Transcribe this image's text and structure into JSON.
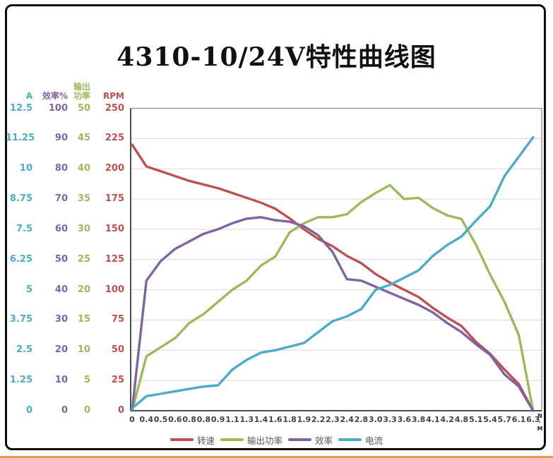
{
  "window": {
    "title_text": "4310-10/24V特性曲线图"
  },
  "y_axes": [
    {
      "label": "A",
      "color": "#4BACC6",
      "ticks": [
        "12.5",
        "11.25",
        "10",
        "8.75",
        "7.5",
        "6.25",
        "5",
        "3.75",
        "2.5",
        "1.25",
        "0"
      ]
    },
    {
      "label": "效率%",
      "color": "#8064A2",
      "ticks": [
        "100",
        "90",
        "80",
        "70",
        "60",
        "50",
        "40",
        "30",
        "20",
        "10",
        "0"
      ]
    },
    {
      "label": "输出功率",
      "label_lines": [
        "输出",
        "功率"
      ],
      "color": "#9BBB59",
      "ticks": [
        "50",
        "45",
        "40",
        "35",
        "30",
        "25",
        "20",
        "15",
        "10",
        "5",
        "0"
      ]
    },
    {
      "label": "RPM",
      "color": "#C0504D",
      "ticks": [
        "250",
        "225",
        "200",
        "175",
        "150",
        "125",
        "100",
        "75",
        "50",
        "25",
        "0"
      ]
    }
  ],
  "x_axis": {
    "unit": "N·M",
    "labels": [
      "0",
      "0.4",
      "0.5",
      "0.6",
      "0.8",
      "0.8",
      "0.9",
      "1.1",
      "1.3",
      "1.4",
      "1.6",
      "1.8",
      "1.9",
      "2.2",
      "2.3",
      "2.4",
      "2.8",
      "3.0",
      "3.3",
      "3.6",
      "3.8",
      "4.1",
      "4.2",
      "4.8",
      "5.1",
      "5.4",
      "5.7",
      "6.1",
      "6.3"
    ]
  },
  "legend": [
    {
      "label": "转速",
      "color": "#C0504D"
    },
    {
      "label": "输出功率",
      "color": "#9BBB59"
    },
    {
      "label": "效率",
      "color": "#8064A2"
    },
    {
      "label": "电流",
      "color": "#4BACC6"
    }
  ],
  "chart_data": {
    "type": "line",
    "title": "4310-10/24V特性曲线图",
    "grid": "horizontal",
    "legend_position": "bottom",
    "x_unit": "N·M",
    "categories": [
      "0",
      "0.4",
      "0.5",
      "0.6",
      "0.8",
      "0.8",
      "0.9",
      "1.1",
      "1.3",
      "1.4",
      "1.6",
      "1.8",
      "1.9",
      "2.2",
      "2.3",
      "2.4",
      "2.8",
      "3.0",
      "3.3",
      "3.6",
      "3.8",
      "4.1",
      "4.2",
      "4.8",
      "5.1",
      "5.4",
      "5.7",
      "6.1",
      "6.3"
    ],
    "series": [
      {
        "name": "转速",
        "unit": "RPM",
        "color": "#C0504D",
        "axis_max": 250,
        "axis_min": 0,
        "values": [
          220,
          202,
          198,
          194,
          190,
          187,
          184,
          180,
          176,
          172,
          167,
          159,
          150,
          142,
          136,
          128,
          122,
          113,
          106,
          100,
          94,
          85,
          77,
          70,
          57,
          47,
          34,
          22,
          0
        ]
      },
      {
        "name": "输出功率",
        "unit": "W",
        "color": "#9BBB59",
        "axis_max": 50,
        "axis_min": 0,
        "values": [
          0,
          9,
          10.5,
          12,
          14.5,
          16,
          18,
          20,
          21.5,
          24,
          25.5,
          29.5,
          31,
          32,
          32,
          32.5,
          34.5,
          36,
          37.3,
          35,
          35.2,
          33.5,
          32.3,
          31.7,
          27.5,
          22.5,
          18,
          12.5,
          0
        ]
      },
      {
        "name": "效率",
        "unit": "%",
        "color": "#8064A2",
        "axis_max": 100,
        "axis_min": 0,
        "values": [
          0,
          43,
          49.5,
          53.5,
          56,
          58.5,
          60,
          62,
          63.5,
          64,
          63,
          62.5,
          61,
          58,
          52.5,
          43.5,
          43,
          41,
          39,
          37,
          35,
          32.5,
          29,
          26,
          22,
          18.5,
          12,
          8,
          0
        ]
      },
      {
        "name": "电流",
        "unit": "A",
        "color": "#4BACC6",
        "axis_max": 12.5,
        "axis_min": 0,
        "values": [
          0.1,
          0.6,
          0.7,
          0.8,
          0.9,
          1.0,
          1.05,
          1.7,
          2.1,
          2.4,
          2.5,
          2.65,
          2.8,
          3.25,
          3.7,
          3.9,
          4.2,
          5.0,
          5.2,
          5.5,
          5.8,
          6.4,
          6.85,
          7.2,
          7.85,
          8.45,
          9.7,
          10.5,
          11.3
        ]
      }
    ]
  }
}
